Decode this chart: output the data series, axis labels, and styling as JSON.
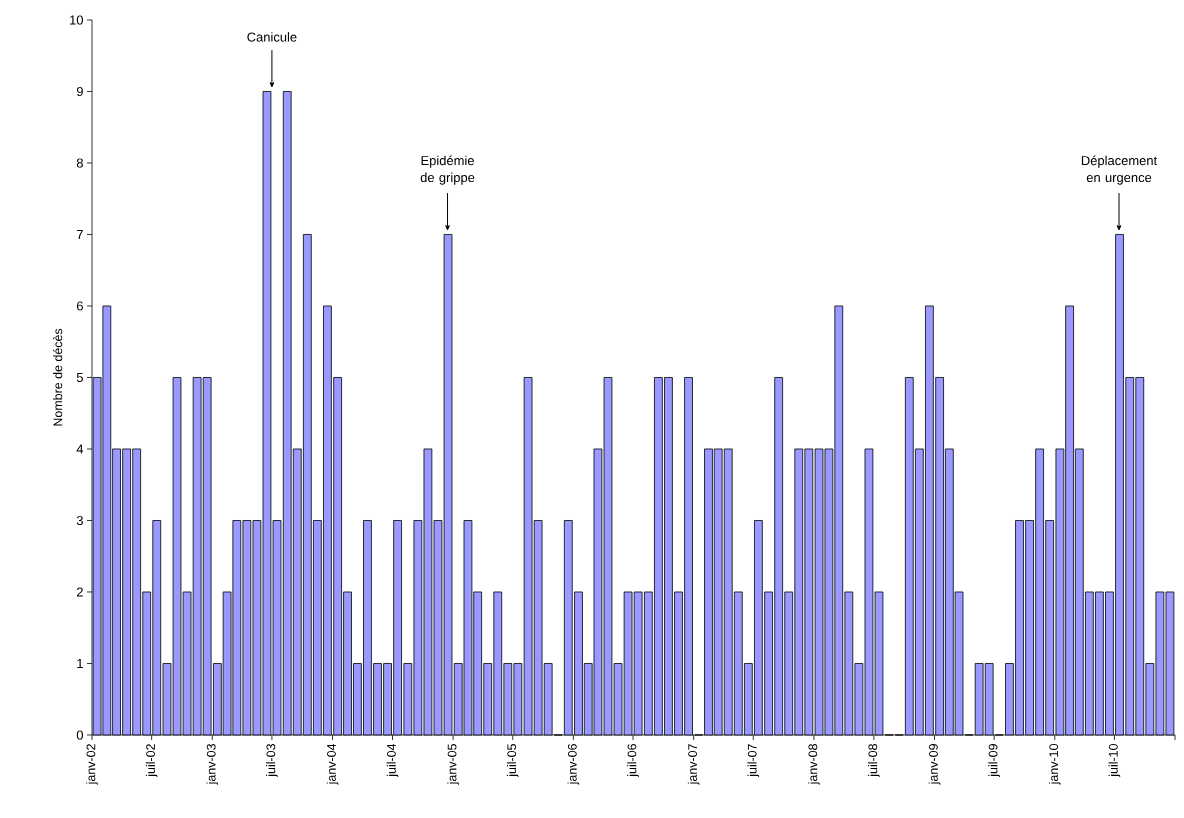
{
  "chart_data": {
    "type": "bar",
    "ylabel": "Nombre de décès",
    "x": [
      "2002-01",
      "2002-02",
      "2002-03",
      "2002-04",
      "2002-05",
      "2002-06",
      "2002-07",
      "2002-08",
      "2002-09",
      "2002-10",
      "2002-11",
      "2002-12",
      "2003-01",
      "2003-02",
      "2003-03",
      "2003-04",
      "2003-05",
      "2003-06",
      "2003-07",
      "2003-08",
      "2003-09",
      "2003-10",
      "2003-11",
      "2003-12",
      "2004-01",
      "2004-02",
      "2004-03",
      "2004-04",
      "2004-05",
      "2004-06",
      "2004-07",
      "2004-08",
      "2004-09",
      "2004-10",
      "2004-11",
      "2004-12",
      "2005-01",
      "2005-02",
      "2005-03",
      "2005-04",
      "2005-05",
      "2005-06",
      "2005-07",
      "2005-08",
      "2005-09",
      "2005-10",
      "2005-11",
      "2005-12",
      "2006-01",
      "2006-02",
      "2006-03",
      "2006-04",
      "2006-05",
      "2006-06",
      "2006-07",
      "2006-08",
      "2006-09",
      "2006-10",
      "2006-11",
      "2006-12",
      "2007-01",
      "2007-02",
      "2007-03",
      "2007-04",
      "2007-05",
      "2007-06",
      "2007-07",
      "2007-08",
      "2007-09",
      "2007-10",
      "2007-11",
      "2007-12",
      "2008-01",
      "2008-02",
      "2008-03",
      "2008-04",
      "2008-05",
      "2008-06",
      "2008-07",
      "2008-08",
      "2008-09",
      "2008-10",
      "2008-11",
      "2008-12",
      "2009-01",
      "2009-02",
      "2009-03",
      "2009-04",
      "2009-05",
      "2009-06",
      "2009-07",
      "2009-08",
      "2009-09",
      "2009-10",
      "2009-11",
      "2009-12",
      "2010-01",
      "2010-02",
      "2010-03",
      "2010-04",
      "2010-05",
      "2010-06",
      "2010-07",
      "2010-08",
      "2010-09",
      "2010-10",
      "2010-11",
      "2010-12"
    ],
    "values": [
      5,
      6,
      4,
      4,
      4,
      2,
      3,
      1,
      5,
      2,
      5,
      5,
      1,
      2,
      3,
      3,
      3,
      9,
      3,
      9,
      4,
      7,
      3,
      6,
      5,
      2,
      1,
      3,
      1,
      1,
      3,
      1,
      3,
      4,
      3,
      7,
      1,
      3,
      2,
      1,
      2,
      1,
      1,
      5,
      3,
      1,
      0,
      3,
      2,
      1,
      4,
      5,
      1,
      2,
      2,
      2,
      5,
      5,
      2,
      5,
      0,
      4,
      4,
      4,
      2,
      1,
      3,
      2,
      5,
      2,
      4,
      4,
      4,
      4,
      6,
      2,
      1,
      4,
      2,
      0,
      0,
      5,
      4,
      6,
      5,
      4,
      2,
      0,
      1,
      1,
      0,
      1,
      3,
      3,
      4,
      3,
      4,
      6,
      4,
      2,
      2,
      2,
      7,
      5,
      5,
      1,
      2,
      2
    ],
    "color": "#9999ff",
    "xlim": [
      "2002-01",
      "2011-01"
    ],
    "xticks": [
      {
        "value": "2002-01",
        "label": "janv-02"
      },
      {
        "value": "2002-07",
        "label": "juil-02"
      },
      {
        "value": "2003-01",
        "label": "janv-03"
      },
      {
        "value": "2003-07",
        "label": "juil-03"
      },
      {
        "value": "2004-01",
        "label": "janv-04"
      },
      {
        "value": "2004-07",
        "label": "juil-04"
      },
      {
        "value": "2005-01",
        "label": "janv-05"
      },
      {
        "value": "2005-07",
        "label": "juil-05"
      },
      {
        "value": "2006-01",
        "label": "janv-06"
      },
      {
        "value": "2006-07",
        "label": "juil-06"
      },
      {
        "value": "2007-01",
        "label": "janv-07"
      },
      {
        "value": "2007-07",
        "label": "juil-07"
      },
      {
        "value": "2008-01",
        "label": "janv-08"
      },
      {
        "value": "2008-07",
        "label": "juil-08"
      },
      {
        "value": "2009-01",
        "label": "janv-09"
      },
      {
        "value": "2009-07",
        "label": "juil-09"
      },
      {
        "value": "2010-01",
        "label": "janv-10"
      },
      {
        "value": "2010-07",
        "label": "juil-10"
      },
      {
        "value": "2011-01",
        "label": null
      }
    ],
    "ylim": [
      0,
      10
    ],
    "yticks": [
      0,
      1,
      2,
      3,
      4,
      5,
      6,
      7,
      8,
      9,
      10
    ],
    "grid": false,
    "annotations": [
      {
        "text": "Canicule",
        "x": "2003-07-01",
        "y": 9
      },
      {
        "text": "Epidémie de grippe",
        "x": "2004-12-15",
        "y": 7
      },
      {
        "text": "Déplacement en urgence",
        "x": "2010-07-15",
        "y": 7
      }
    ]
  }
}
